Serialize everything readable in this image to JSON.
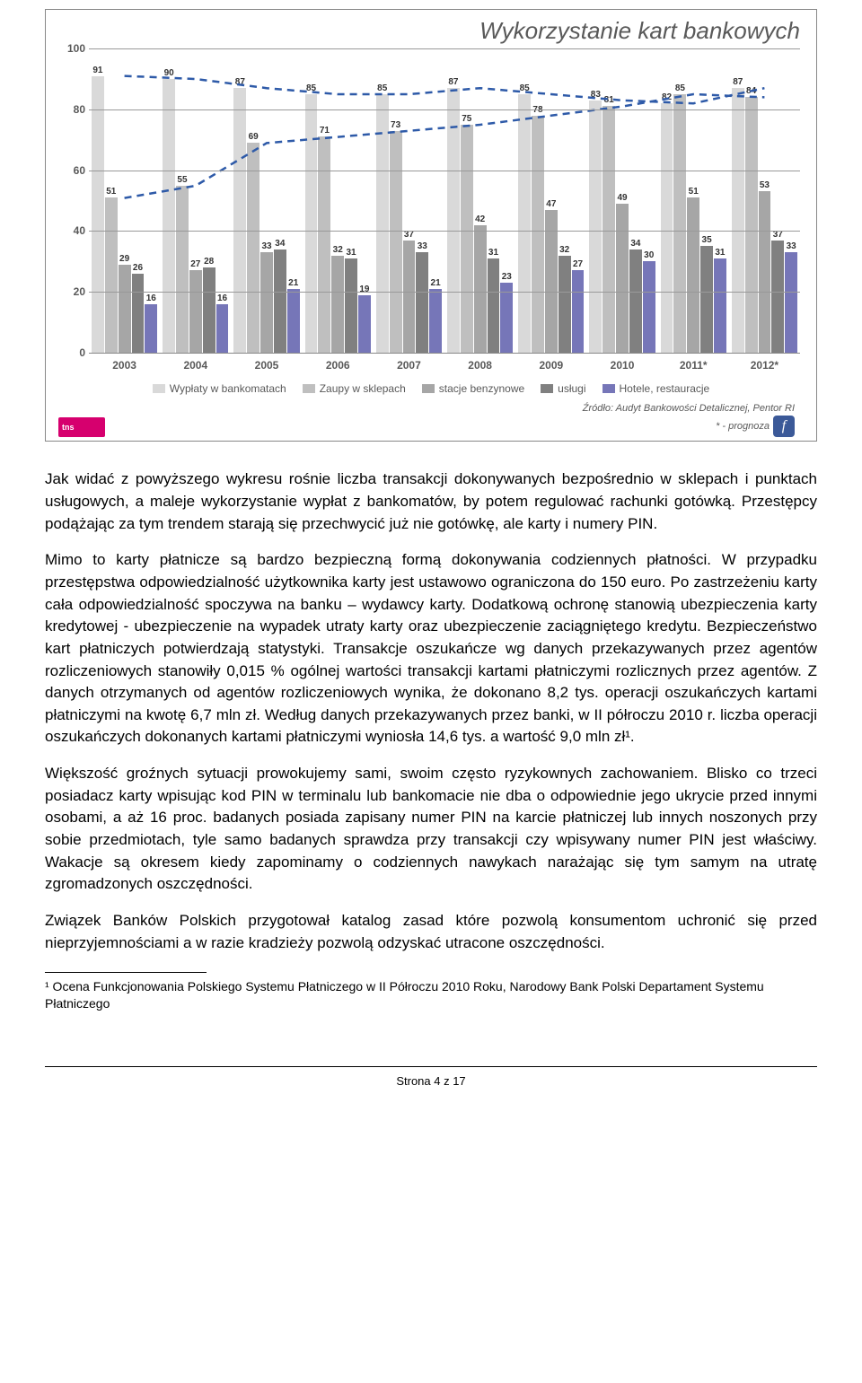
{
  "chart": {
    "title": "Wykorzystanie kart bankowych",
    "type": "bar",
    "ymax": 100,
    "yticks": [
      0,
      20,
      40,
      60,
      80,
      100
    ],
    "series_colors": [
      "#d9d9d9",
      "#bfbfbf",
      "#a6a6a6",
      "#808080",
      "#7676b8"
    ],
    "categories": [
      "2003",
      "2004",
      "2005",
      "2006",
      "2007",
      "2008",
      "2009",
      "2010",
      "2011*",
      "2012*"
    ],
    "series_names": [
      "Wypłaty w bankomatach",
      "Zaupy w sklepach",
      "stacje benzynowe",
      "usługi",
      "Hotele, restauracje"
    ],
    "values": [
      [
        91,
        51,
        29,
        26,
        16
      ],
      [
        90,
        55,
        27,
        28,
        16
      ],
      [
        87,
        69,
        33,
        34,
        21
      ],
      [
        85,
        71,
        32,
        31,
        19
      ],
      [
        85,
        73,
        37,
        33,
        21
      ],
      [
        87,
        75,
        42,
        31,
        23
      ],
      [
        85,
        78,
        47,
        32,
        27
      ],
      [
        83,
        81,
        49,
        34,
        30
      ],
      [
        82,
        85,
        51,
        35,
        31
      ],
      [
        87,
        84,
        53,
        37,
        33
      ]
    ],
    "trend_top": [
      91,
      90,
      87,
      85,
      85,
      87,
      85,
      83,
      82,
      87
    ],
    "trend_bottom": [
      51,
      55,
      69,
      71,
      73,
      75,
      78,
      81,
      85,
      84
    ],
    "trend_color": "#2e5aa8",
    "source_line": "Źródło: Audyt Bankowości Detalicznej, Pentor RI",
    "note_line": "* - prognoza",
    "tns_label": "tns"
  },
  "paragraphs": {
    "p1": "Jak widać z powyższego wykresu rośnie liczba transakcji dokonywanych bezpośrednio w sklepach i punktach usługowych, a maleje wykorzystanie wypłat z bankomatów, by potem regulować rachunki gotówką. Przestępcy podążając za tym trendem starają się przechwycić już nie gotówkę, ale karty i numery PIN.",
    "p2": "Mimo to karty płatnicze są  bardzo bezpieczną formą dokonywania codziennych płatności. W przypadku przestępstwa odpowiedzialność użytkownika karty jest ustawowo ograniczona do 150 euro. Po zastrzeżeniu karty cała odpowiedzialność spoczywa na banku – wydawcy karty. Dodatkową ochronę stanowią ubezpieczenia karty kredytowej -  ubezpieczenie na wypadek utraty karty oraz ubezpieczenie zaciągniętego kredytu.  Bezpieczeństwo kart płatniczych potwierdzają statystyki. Transakcje oszukańcze wg danych przekazywanych przez agentów rozliczeniowych stanowiły 0,015 % ogólnej wartości transakcji kartami płatniczymi rozlicznych przez agentów. Z danych otrzymanych od agentów rozliczeniowych wynika, że dokonano 8,2 tys. operacji oszukańczych kartami płatniczymi na kwotę 6,7 mln zł. Według danych przekazywanych przez banki, w II półroczu 2010 r. liczba operacji oszukańczych dokonanych kartami płatniczymi wyniosła 14,6 tys. a wartość 9,0 mln zł¹.",
    "p3": "Większość groźnych sytuacji prowokujemy sami, swoim często ryzykownych zachowaniem. Blisko co trzeci posiadacz karty wpisując kod PIN w terminalu lub bankomacie nie dba o odpowiednie jego ukrycie przed innymi osobami, a aż 16 proc. badanych posiada zapisany numer PIN na karcie płatniczej lub innych noszonych przy sobie przedmiotach, tyle samo badanych sprawdza przy transakcji czy wpisywany numer PIN jest właściwy. Wakacje są okresem kiedy zapominamy o codziennych nawykach narażając się tym samym na utratę zgromadzonych oszczędności.",
    "p4": "Związek Banków Polskich przygotował katalog zasad które pozwolą konsumentom uchronić się przed nieprzyjemnościami a w razie kradzieży pozwolą odzyskać utracone oszczędności."
  },
  "footnote": "¹ Ocena Funkcjonowania Polskiego Systemu Płatniczego w II Półroczu 2010 Roku, Narodowy Bank Polski Departament Systemu Płatniczego",
  "page_label": "Strona 4 z 17"
}
